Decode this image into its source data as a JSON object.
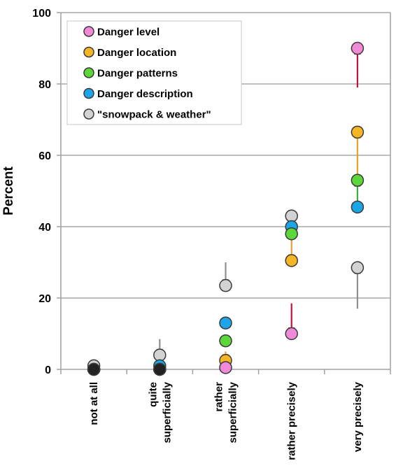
{
  "chart_data": {
    "type": "scatter",
    "ylabel": "Percent",
    "ylim": [
      0,
      100
    ],
    "yticks": [
      0,
      20,
      40,
      60,
      80,
      100
    ],
    "categories": [
      "not at all",
      "quite superficially",
      "rather superficially",
      "rather precisely",
      "very precisely"
    ],
    "category_lines": [
      [
        "not at all"
      ],
      [
        "quite",
        "superficially"
      ],
      [
        "rather",
        "superficially"
      ],
      [
        "rather precisely"
      ],
      [
        "very precisely"
      ]
    ],
    "grid": true,
    "legend_position": "top-left",
    "series": [
      {
        "name": "Danger level",
        "color": "#f08ad8",
        "values": [
          0,
          0,
          0.5,
          10,
          90
        ]
      },
      {
        "name": "Danger location",
        "color": "#f5b625",
        "values": [
          0,
          0,
          2.5,
          30.5,
          66.5
        ]
      },
      {
        "name": "Danger patterns",
        "color": "#5cd63a",
        "values": [
          0,
          0,
          8,
          38,
          53
        ]
      },
      {
        "name": "Danger description",
        "color": "#1ca6e8",
        "values": [
          0,
          1,
          13,
          40,
          45.5
        ]
      },
      {
        "name": "\"snowpack & weather\"",
        "color": "#d3d3d3",
        "values": [
          1,
          4,
          23.5,
          43,
          28.5
        ]
      }
    ],
    "arrows": [
      {
        "category": "quite superficially",
        "from": 8.5,
        "to": 4,
        "color": "#909090"
      },
      {
        "category": "rather superficially",
        "from": 30,
        "to": 23.5,
        "color": "#909090"
      },
      {
        "category": "rather superficially",
        "from": 5,
        "to": 2.5,
        "color": "#e8a030"
      },
      {
        "category": "rather precisely",
        "from": 18.5,
        "to": 10,
        "color": "#c0143c"
      },
      {
        "category": "rather precisely",
        "from": 38,
        "to": 30.5,
        "color": "#e8a030"
      },
      {
        "category": "very precisely",
        "from": 79,
        "to": 90,
        "color": "#c0143c"
      },
      {
        "category": "very precisely",
        "from": 53,
        "to": 66.5,
        "color": "#e8a030"
      },
      {
        "category": "very precisely",
        "from": 45.5,
        "to": 53,
        "color": "#3ab040"
      },
      {
        "category": "very precisely",
        "from": 17,
        "to": 28.5,
        "color": "#909090"
      }
    ]
  }
}
